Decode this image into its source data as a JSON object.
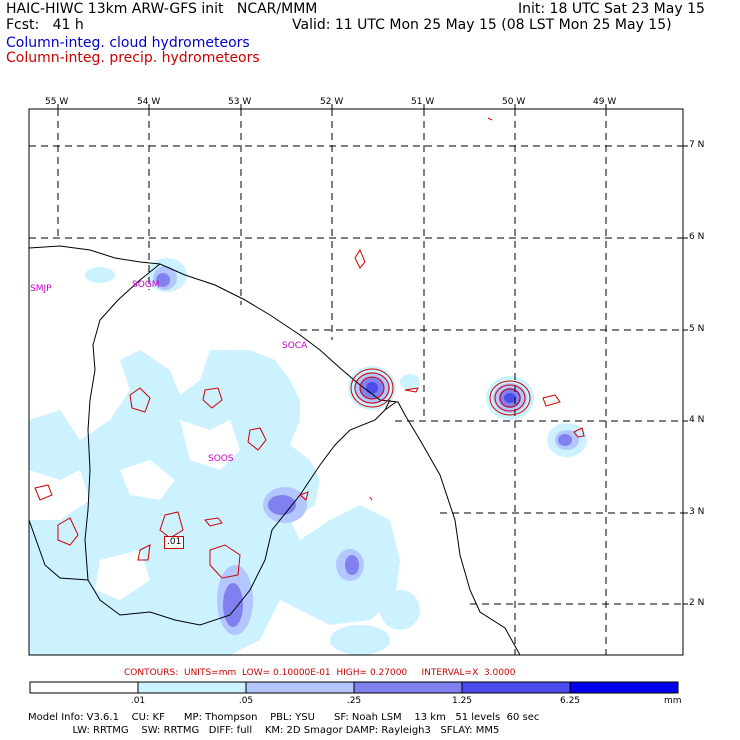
{
  "header": {
    "model_line": "HAIC-HIWC 13km ARW-GFS init   NCAR/MMM",
    "fcst_line": "Fcst:   41 h",
    "init_line": "Init: 18 UTC Sat 23 May 15",
    "valid_line": "Valid: 11 UTC Mon 25 May 15 (08 LST Mon 25 May 15)",
    "legend_cloud": "Column-integ. cloud hydrometeors",
    "legend_precip": "Column-integ. precip. hydrometeors"
  },
  "colors": {
    "cloud_title": "#0000cc",
    "precip_title": "#cc0000",
    "contour": "#cc0000",
    "station": "#cc00cc",
    "fill_1": "#ccf2ff",
    "fill_2": "#b3c6ff",
    "fill_3": "#8080ee",
    "fill_4": "#4d4dee",
    "fill_5": "#2020dd",
    "fill_6": "#0000ee"
  },
  "map": {
    "lon_labels": [
      "55 W",
      "54 W",
      "53 W",
      "52 W",
      "51 W",
      "50 W",
      "49 W"
    ],
    "lat_labels": [
      "7 N",
      "6 N",
      "5 N",
      "4 N",
      "3 N",
      "2 N"
    ],
    "stations": [
      "SMJP",
      "SOGM",
      "SOCA",
      "SOOS"
    ],
    "contour_label": ".01"
  },
  "contour_info": "CONTOURS:  UNITS=mm  LOW= 0.10000E-01  HIGH= 0.27000     INTERVAL=X  3.0000",
  "scale": {
    "ticks": [
      ".01",
      ".05",
      ".25",
      "1.25",
      "6.25"
    ],
    "unit": "mm"
  },
  "footer": {
    "line1": "Model Info: V3.6.1    CU: KF      MP: Thompson    PBL: YSU      SF: Noah LSM    13 km   51 levels  60 sec",
    "line2": "              LW: RRTMG    SW: RRTMG   DIFF: full    KM: 2D Smagor DAMP: Rayleigh3   SFLAY: MM5"
  }
}
